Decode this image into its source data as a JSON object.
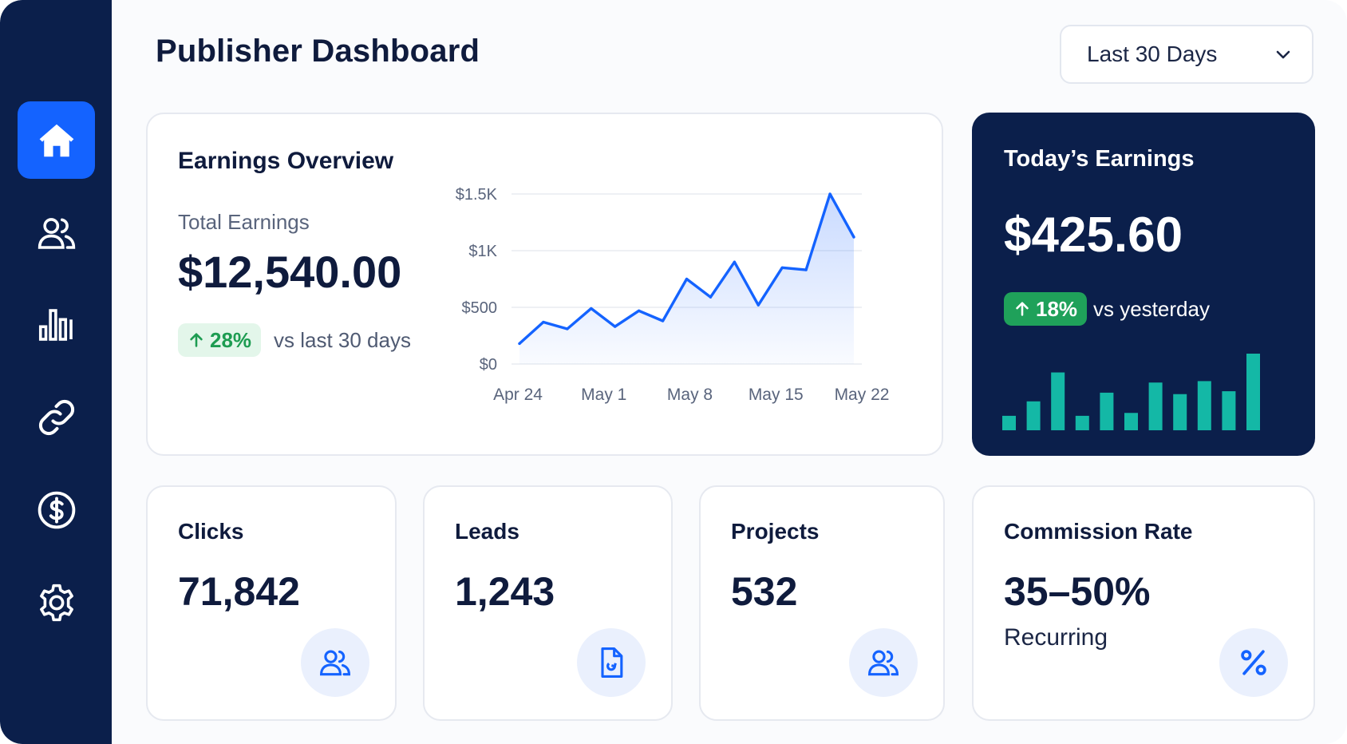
{
  "header": {
    "title": "Publisher Dashboard",
    "range_label": "Last 30 Days"
  },
  "sidebar": {
    "items": [
      {
        "icon": "home-icon",
        "active": true
      },
      {
        "icon": "users-icon",
        "active": false
      },
      {
        "icon": "bar-chart-icon",
        "active": false
      },
      {
        "icon": "link-icon",
        "active": false
      },
      {
        "icon": "dollar-icon",
        "active": false
      },
      {
        "icon": "gear-icon",
        "active": false
      }
    ]
  },
  "overview": {
    "title": "Earnings Overview",
    "total_label": "Total Earnings",
    "total_value": "$12,540.00",
    "delta": "28%",
    "delta_text": "vs last 30 days"
  },
  "today": {
    "title": "Today’s Earnings",
    "value": "$425.60",
    "delta": "18%",
    "delta_text": "vs yesterday"
  },
  "stats": {
    "clicks": {
      "title": "Clicks",
      "value": "71,842",
      "icon": "users-icon"
    },
    "leads": {
      "title": "Leads",
      "value": "1,243",
      "icon": "document-icon"
    },
    "projects": {
      "title": "Projects",
      "value": "532",
      "icon": "users-icon"
    },
    "commission": {
      "title": "Commission Rate",
      "value": "35–50%",
      "sub": "Recurring",
      "icon": "percent-icon"
    }
  },
  "colors": {
    "navy": "#0b1f4b",
    "accent": "#1463ff",
    "green": "#1fa15a",
    "teal": "#14b8a6"
  },
  "chart_data": [
    {
      "type": "area",
      "y_ticks": [
        "$0",
        "$500",
        "$1K",
        "$1.5K"
      ],
      "x_ticks": [
        "Apr 24",
        "May 1",
        "May 8",
        "May 15",
        "May 22"
      ],
      "ylim": [
        0,
        1500
      ],
      "grid": true,
      "values": [
        180,
        370,
        310,
        490,
        330,
        470,
        380,
        750,
        590,
        900,
        520,
        850,
        830,
        1500,
        1120
      ]
    },
    {
      "type": "bar",
      "values": [
        1,
        2,
        4,
        1,
        2.6,
        1.2,
        3.3,
        2.5,
        3.4,
        2.7,
        5.3
      ]
    }
  ]
}
